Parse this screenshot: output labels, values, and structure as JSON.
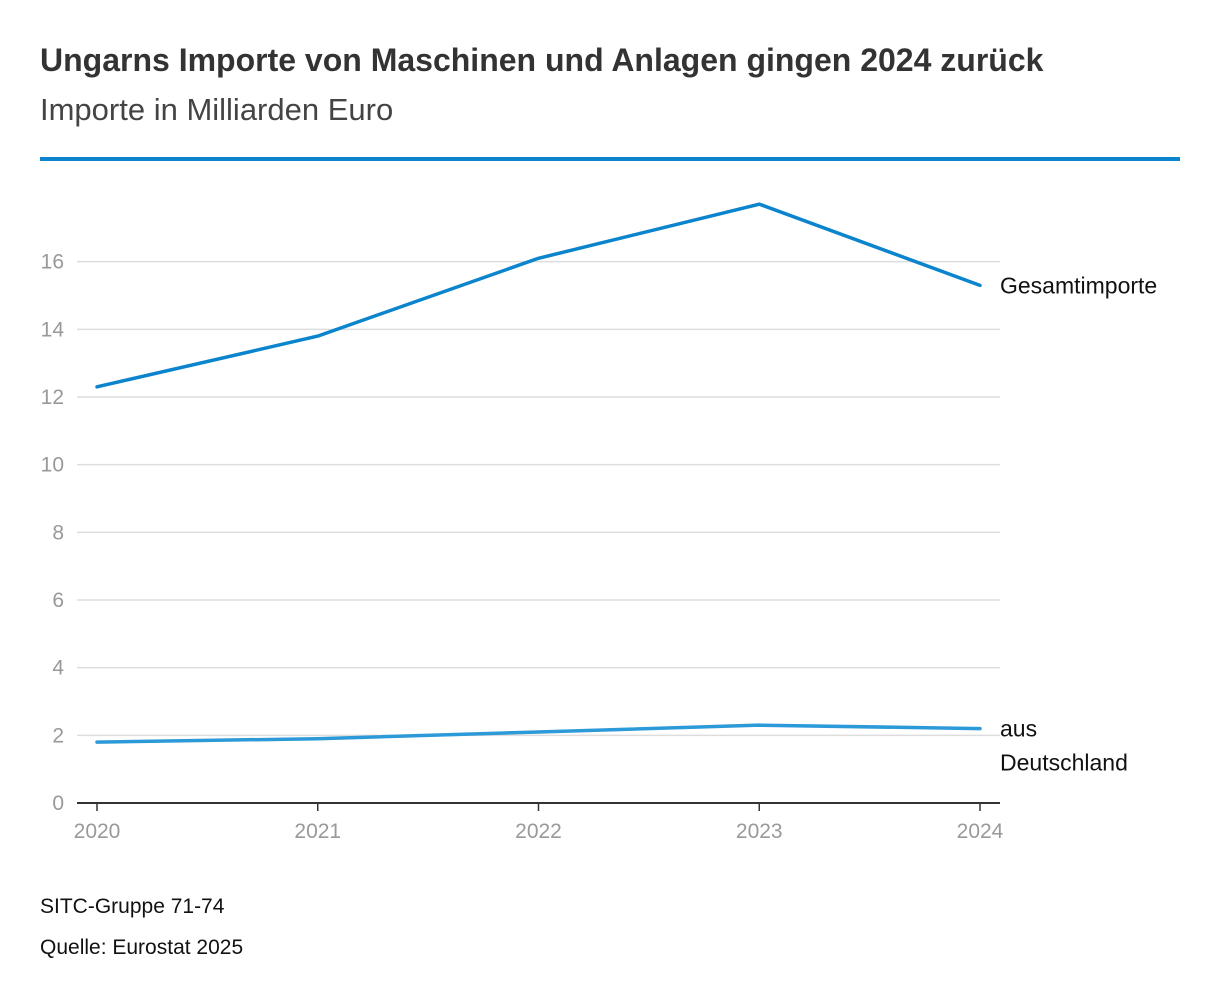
{
  "header": {
    "title": "Ungarns Importe von Maschinen und Anlagen gingen 2024 zurück",
    "subtitle": "Importe in Milliarden Euro"
  },
  "footer": {
    "note": "SITC-Gruppe 71-74",
    "source": "Quelle: Eurostat 2025"
  },
  "colors": {
    "accent": "#0a84cc",
    "series_total": "#0a84cc",
    "series_germany": "#2c9ad8",
    "grid": "#dddddd",
    "axis": "#333333",
    "tick_text": "#999999"
  },
  "chart_data": {
    "type": "line",
    "title": "Ungarns Importe von Maschinen und Anlagen gingen 2024 zurück",
    "subtitle": "Importe in Milliarden Euro",
    "xlabel": "",
    "ylabel": "",
    "x": [
      "2020",
      "2021",
      "2022",
      "2023",
      "2024"
    ],
    "ylim": [
      0,
      18
    ],
    "yticks": [
      0,
      2,
      4,
      6,
      8,
      10,
      12,
      14,
      16
    ],
    "grid": true,
    "legend": "direct labels at line ends (right)",
    "series": [
      {
        "name": "Gesamtimporte",
        "label_lines": [
          "Gesamtimporte"
        ],
        "values": [
          12.3,
          13.8,
          16.1,
          17.7,
          15.3
        ]
      },
      {
        "name": "aus Deutschland",
        "label_lines": [
          "aus",
          "Deutschland"
        ],
        "values": [
          1.8,
          1.9,
          2.1,
          2.3,
          2.2
        ]
      }
    ]
  }
}
